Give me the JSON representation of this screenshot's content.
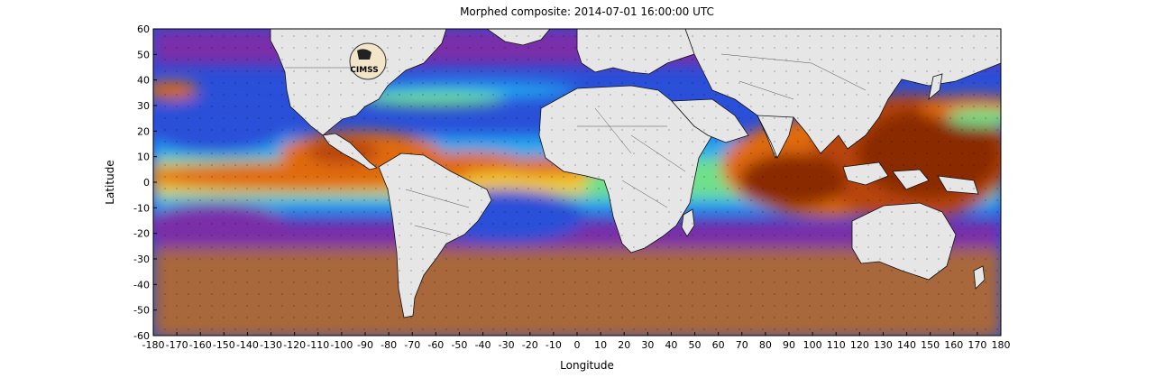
{
  "map": {
    "title": "Morphed composite: 2014-07-01 16:00:00 UTC",
    "xlabel": "Longitude",
    "ylabel": "Latitude",
    "x_ticks": [
      "-180",
      "-170",
      "-160",
      "-150",
      "-140",
      "-130",
      "-120",
      "-110",
      "-100",
      "-90",
      "-80",
      "-70",
      "-60",
      "-50",
      "-40",
      "-30",
      "-20",
      "-10",
      "0",
      "10",
      "20",
      "30",
      "40",
      "50",
      "60",
      "70",
      "80",
      "90",
      "100",
      "110",
      "120",
      "130",
      "140",
      "150",
      "160",
      "170",
      "180"
    ],
    "y_ticks": [
      "60",
      "50",
      "40",
      "30",
      "20",
      "10",
      "0",
      "-10",
      "-20",
      "-30",
      "-40",
      "-50",
      "-60"
    ],
    "logo_text": "CIMSS",
    "colors": {
      "land": "#e6e6e6",
      "very_moist": "#8a2a06",
      "moist": "#e06a10",
      "moderate": "#f2c830",
      "mid": "#6fe08a",
      "mid_low": "#22a8f0",
      "low": "#2a4fd8",
      "dry": "#7a2fa8",
      "very_dry": "#a8683a"
    }
  }
}
